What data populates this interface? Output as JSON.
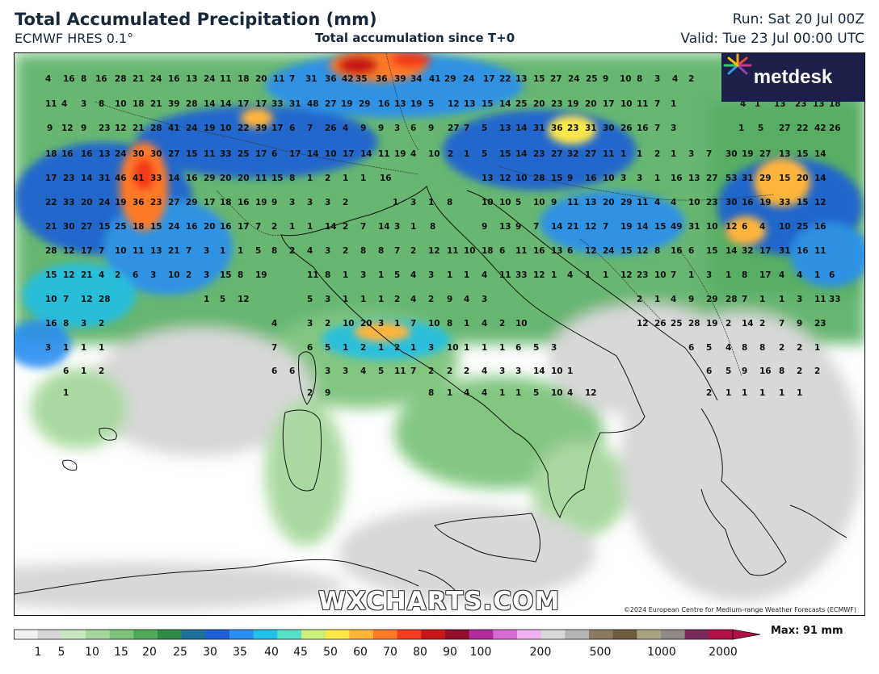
{
  "header": {
    "title": "Total Accumulated Precipitation (mm)",
    "model": "ECMWF HRES 0.1°",
    "subtitle": "Total accumulation since T+0",
    "run": "Run: Sat 20 Jul 00Z",
    "valid": "Valid: Tue 23 Jul 00:00 UTC"
  },
  "branding": {
    "logo_text": "metdesk",
    "watermark": "WXCHARTS.COM",
    "copyright": "©2024 European Centre for Medium-range Weather Forecasts (ECMWF)"
  },
  "legend": {
    "ticks": [
      "1",
      "5",
      "10",
      "15",
      "20",
      "25",
      "30",
      "35",
      "40",
      "45",
      "50",
      "60",
      "70",
      "80",
      "90",
      "100",
      "200",
      "500",
      "1000",
      "2000"
    ],
    "max_label": "Max: 91 mm",
    "colors": [
      "#f2f2f2",
      "#d6d6d6",
      "#c8e6c0",
      "#a6d69b",
      "#7cc47a",
      "#4fa95a",
      "#2e8b47",
      "#1e6f9a",
      "#1f5fd6",
      "#2b8ef0",
      "#22bfe6",
      "#57e0c8",
      "#c8f07a",
      "#ffe84a",
      "#ffb53a",
      "#ff7a26",
      "#f23a1f",
      "#c71616",
      "#8e0e2c",
      "#b02a9a",
      "#d46ad2",
      "#f0b2ee",
      "#d8d8d8",
      "#b5b5b5",
      "#8a7a62",
      "#6e5a3e",
      "#a8a482",
      "#8f8a86",
      "#7a2a5a",
      "#b3104a"
    ]
  },
  "map_values": [
    "4",
    "16",
    "8",
    "16",
    "28",
    "21",
    "24",
    "16",
    "13",
    "24",
    "11",
    "18",
    "20",
    "11",
    "7",
    "31",
    "36",
    "42",
    "35",
    "36",
    "39",
    "34",
    "41",
    "29",
    "24",
    "17",
    "22",
    "13",
    "15",
    "27",
    "24",
    "25",
    "9",
    "10",
    "8",
    "3",
    "4",
    "2",
    "11",
    "4",
    "3",
    "8",
    "10",
    "18",
    "21",
    "39",
    "28",
    "14",
    "14",
    "17",
    "17",
    "33",
    "31",
    "48",
    "27",
    "19",
    "29",
    "16",
    "13",
    "19",
    "5",
    "12",
    "13",
    "15",
    "14",
    "25",
    "20",
    "23",
    "19",
    "20",
    "17",
    "10",
    "11",
    "7",
    "1",
    "4",
    "1",
    "13",
    "23",
    "13",
    "18",
    "9",
    "12",
    "9",
    "23",
    "12",
    "21",
    "28",
    "41",
    "24",
    "19",
    "10",
    "22",
    "39",
    "17",
    "6",
    "7",
    "26",
    "4",
    "9",
    "9",
    "3",
    "6",
    "9",
    "27",
    "7",
    "5",
    "13",
    "14",
    "31",
    "36",
    "23",
    "31",
    "30",
    "26",
    "16",
    "7",
    "3",
    "1",
    "5",
    "27",
    "22",
    "42",
    "26",
    "18",
    "16",
    "16",
    "13",
    "24",
    "30",
    "30",
    "27",
    "15",
    "11",
    "33",
    "25",
    "17",
    "6",
    "17",
    "14",
    "10",
    "17",
    "14",
    "11",
    "19",
    "4",
    "10",
    "2",
    "1",
    "5",
    "15",
    "14",
    "23",
    "27",
    "32",
    "27",
    "11",
    "1",
    "1",
    "2",
    "1",
    "3",
    "7",
    "30",
    "19",
    "27",
    "13",
    "15",
    "14",
    "17",
    "23",
    "14",
    "31",
    "46",
    "41",
    "33",
    "14",
    "16",
    "29",
    "20",
    "20",
    "11",
    "15",
    "8",
    "1",
    "2",
    "1",
    "1",
    "16",
    "13",
    "12",
    "10",
    "28",
    "15",
    "9",
    "16",
    "10",
    "3",
    "3",
    "1",
    "16",
    "13",
    "27",
    "53",
    "31",
    "29",
    "15",
    "20",
    "14",
    "22",
    "33",
    "20",
    "24",
    "19",
    "36",
    "23",
    "27",
    "29",
    "17",
    "18",
    "16",
    "19",
    "9",
    "3",
    "3",
    "3",
    "2",
    "1",
    "3",
    "1",
    "8",
    "10",
    "10",
    "5",
    "10",
    "9",
    "11",
    "13",
    "20",
    "29",
    "11",
    "4",
    "4",
    "10",
    "23",
    "30",
    "16",
    "19",
    "33",
    "15",
    "12",
    "21",
    "30",
    "27",
    "15",
    "25",
    "18",
    "15",
    "24",
    "16",
    "20",
    "16",
    "17",
    "7",
    "2",
    "1",
    "1",
    "14",
    "2",
    "7",
    "14",
    "3",
    "1",
    "8",
    "9",
    "13",
    "9",
    "7",
    "14",
    "21",
    "12",
    "7",
    "19",
    "14",
    "15",
    "49",
    "31",
    "10",
    "12",
    "6",
    "4",
    "10",
    "25",
    "16",
    "28",
    "12",
    "17",
    "7",
    "10",
    "11",
    "13",
    "21",
    "7",
    "3",
    "1",
    "1",
    "5",
    "8",
    "2",
    "4",
    "3",
    "2",
    "8",
    "8",
    "7",
    "2",
    "12",
    "11",
    "10",
    "18",
    "6",
    "11",
    "16",
    "13",
    "6",
    "12",
    "24",
    "15",
    "12",
    "8",
    "16",
    "6",
    "15",
    "14",
    "32",
    "17",
    "31",
    "16",
    "11",
    "15",
    "12",
    "21",
    "4",
    "2",
    "6",
    "3",
    "10",
    "2",
    "3",
    "15",
    "8",
    "19",
    "11",
    "8",
    "1",
    "3",
    "1",
    "5",
    "4",
    "3",
    "1",
    "1",
    "4",
    "11",
    "33",
    "12",
    "1",
    "4",
    "1",
    "1",
    "12",
    "23",
    "10",
    "7",
    "1",
    "3",
    "1",
    "8",
    "17",
    "4",
    "4",
    "1",
    "6",
    "10",
    "7",
    "12",
    "28",
    "1",
    "5",
    "12",
    "5",
    "3",
    "1",
    "1",
    "1",
    "2",
    "4",
    "2",
    "9",
    "4",
    "3",
    "2",
    "1",
    "4",
    "9",
    "29",
    "28",
    "7",
    "1",
    "1",
    "3",
    "11",
    "33",
    "16",
    "8",
    "3",
    "2",
    "4",
    "3",
    "2",
    "10",
    "20",
    "3",
    "1",
    "7",
    "10",
    "8",
    "1",
    "4",
    "2",
    "10",
    "12",
    "26",
    "25",
    "28",
    "19",
    "2",
    "14",
    "2",
    "7",
    "9",
    "23",
    "3",
    "1",
    "1",
    "1",
    "7",
    "6",
    "5",
    "1",
    "2",
    "1",
    "2",
    "1",
    "3",
    "10",
    "1",
    "1",
    "1",
    "6",
    "5",
    "3",
    "6",
    "5",
    "4",
    "8",
    "8",
    "2",
    "2",
    "1",
    "6",
    "1",
    "2",
    "6",
    "6",
    "3",
    "3",
    "4",
    "5",
    "11",
    "7",
    "2",
    "2",
    "2",
    "4",
    "3",
    "3",
    "14",
    "10",
    "1",
    "6",
    "5",
    "9",
    "16",
    "8",
    "2",
    "2",
    "1",
    "2",
    "9",
    "8",
    "1",
    "4",
    "4",
    "1",
    "1",
    "5",
    "10",
    "4",
    "12",
    "2",
    "1",
    "1",
    "1",
    "1",
    "1"
  ]
}
